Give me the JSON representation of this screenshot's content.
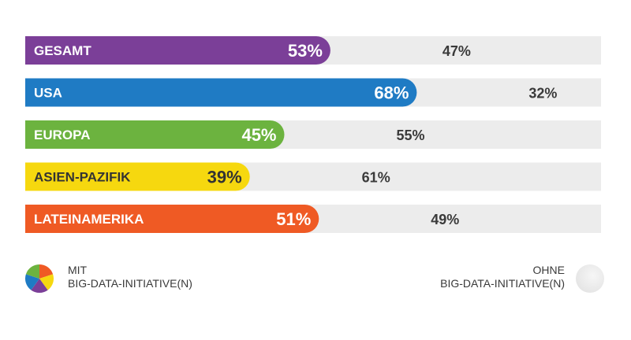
{
  "chart_data": {
    "type": "bar",
    "stacked": true,
    "orientation": "horizontal",
    "categories": [
      "GESAMT",
      "USA",
      "EUROPA",
      "ASIEN-PAZIFIK",
      "LATEINAMERIKA"
    ],
    "series": [
      {
        "name": "MIT BIG-DATA-INITIATIVE(N)",
        "values": [
          53,
          68,
          45,
          39,
          51
        ],
        "labels": [
          "53%",
          "68%",
          "45%",
          "39%",
          "51%"
        ]
      },
      {
        "name": "OHNE BIG-DATA-INITIATIVE(N)",
        "values": [
          47,
          32,
          55,
          61,
          49
        ],
        "labels": [
          "47%",
          "32%",
          "55%",
          "61%",
          "49%"
        ]
      }
    ],
    "colors": [
      "#7b3f98",
      "#1f7bc4",
      "#6cb33f",
      "#f6d80f",
      "#ef5a24"
    ],
    "rest_color": "#ececec",
    "xlim": [
      0,
      100
    ],
    "grid": false
  },
  "legend": {
    "left_line1": "MIT",
    "left_line2": "BIG-DATA-INITIATIVE(N)",
    "right_line1": "OHNE",
    "right_line2": "BIG-DATA-INITIATIVE(N)"
  }
}
